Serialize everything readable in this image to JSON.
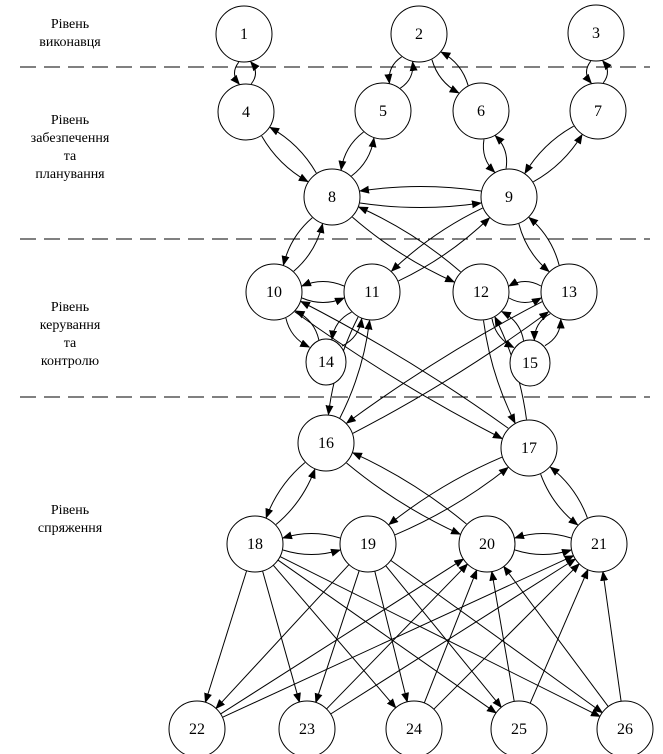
{
  "levels": [
    {
      "label": "Рівень\nвиконавця"
    },
    {
      "label": "Рівень\nзабезпечення\nта\nпланування"
    },
    {
      "label": "Рівень\nкерування\nта\nконтролю"
    },
    {
      "label": "Рівень\nспряження"
    }
  ],
  "nodes": [
    "1",
    "2",
    "3",
    "4",
    "5",
    "6",
    "7",
    "8",
    "9",
    "10",
    "11",
    "12",
    "13",
    "14",
    "15",
    "16",
    "17",
    "18",
    "19",
    "20",
    "21",
    "22",
    "23",
    "24",
    "25",
    "26"
  ],
  "edges": [
    [
      "1",
      "4"
    ],
    [
      "4",
      "1"
    ],
    [
      "2",
      "5"
    ],
    [
      "5",
      "2"
    ],
    [
      "2",
      "6"
    ],
    [
      "6",
      "2"
    ],
    [
      "3",
      "7"
    ],
    [
      "7",
      "3"
    ],
    [
      "8",
      "4"
    ],
    [
      "4",
      "8"
    ],
    [
      "5",
      "8"
    ],
    [
      "8",
      "5"
    ],
    [
      "9",
      "6"
    ],
    [
      "6",
      "9"
    ],
    [
      "9",
      "7"
    ],
    [
      "7",
      "9"
    ],
    [
      "9",
      "8"
    ],
    [
      "8",
      "9"
    ],
    [
      "10",
      "8"
    ],
    [
      "8",
      "10"
    ],
    [
      "9",
      "11"
    ],
    [
      "11",
      "9"
    ],
    [
      "8",
      "12"
    ],
    [
      "12",
      "8"
    ],
    [
      "9",
      "13"
    ],
    [
      "13",
      "9"
    ],
    [
      "10",
      "11"
    ],
    [
      "11",
      "10"
    ],
    [
      "12",
      "13"
    ],
    [
      "13",
      "12"
    ],
    [
      "10",
      "14"
    ],
    [
      "14",
      "10"
    ],
    [
      "11",
      "14"
    ],
    [
      "14",
      "11"
    ],
    [
      "12",
      "15"
    ],
    [
      "15",
      "12"
    ],
    [
      "13",
      "15"
    ],
    [
      "15",
      "13"
    ],
    [
      "11",
      "16"
    ],
    [
      "16",
      "11"
    ],
    [
      "13",
      "16"
    ],
    [
      "16",
      "13"
    ],
    [
      "10",
      "17"
    ],
    [
      "17",
      "10"
    ],
    [
      "12",
      "17"
    ],
    [
      "17",
      "12"
    ],
    [
      "16",
      "18"
    ],
    [
      "18",
      "16"
    ],
    [
      "17",
      "19"
    ],
    [
      "19",
      "17"
    ],
    [
      "16",
      "20"
    ],
    [
      "20",
      "16"
    ],
    [
      "17",
      "21"
    ],
    [
      "21",
      "17"
    ],
    [
      "18",
      "19"
    ],
    [
      "19",
      "18"
    ],
    [
      "20",
      "21"
    ],
    [
      "21",
      "20"
    ],
    [
      "18",
      "22"
    ],
    [
      "18",
      "23"
    ],
    [
      "18",
      "24"
    ],
    [
      "18",
      "25"
    ],
    [
      "18",
      "26"
    ],
    [
      "19",
      "22"
    ],
    [
      "19",
      "23"
    ],
    [
      "19",
      "24"
    ],
    [
      "19",
      "25"
    ],
    [
      "19",
      "26"
    ],
    [
      "22",
      "20"
    ],
    [
      "22",
      "21"
    ],
    [
      "23",
      "20"
    ],
    [
      "23",
      "21"
    ],
    [
      "24",
      "20"
    ],
    [
      "24",
      "21"
    ],
    [
      "25",
      "20"
    ],
    [
      "25",
      "21"
    ],
    [
      "26",
      "20"
    ],
    [
      "26",
      "21"
    ]
  ]
}
